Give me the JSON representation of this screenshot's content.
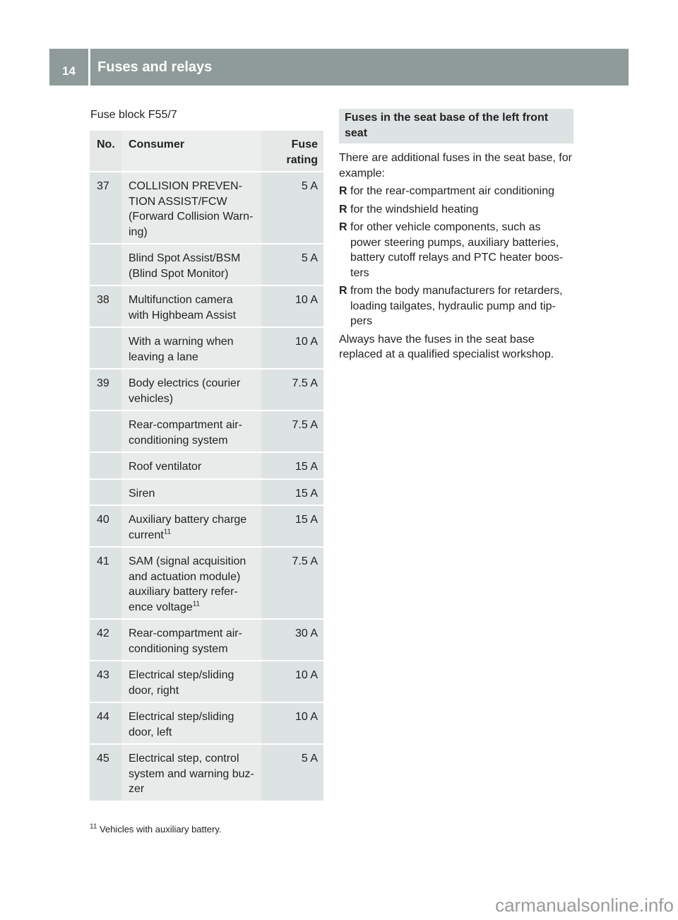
{
  "header": {
    "page_number": "14",
    "title": "Fuses and relays"
  },
  "caption": "Fuse block F55/7",
  "table": {
    "headers": [
      "No.",
      "Consumer",
      "Fuse rating"
    ],
    "rows": [
      {
        "no": "37",
        "consumer": "COLLISION PREVEN-\nTION ASSIST/FCW\n(Forward Collision Warn-\ning)",
        "rating": "5 A"
      },
      {
        "no": "",
        "consumer": "Blind Spot Assist/BSM\n(Blind Spot Monitor)",
        "rating": "5 A"
      },
      {
        "no": "38",
        "consumer": "Multifunction camera\nwith Highbeam Assist",
        "rating": "10 A"
      },
      {
        "no": "",
        "consumer": "With a warning when\nleaving a lane",
        "rating": "10 A"
      },
      {
        "no": "39",
        "consumer": "Body electrics (courier\nvehicles)",
        "rating": "7.5 A"
      },
      {
        "no": "",
        "consumer": "Rear-compartment air-\nconditioning system",
        "rating": "7.5 A"
      },
      {
        "no": "",
        "consumer": "Roof ventilator",
        "rating": "15 A"
      },
      {
        "no": "",
        "consumer": "Siren",
        "rating": "15 A"
      },
      {
        "no": "40",
        "consumer": "Auxiliary battery charge\ncurrent",
        "sup": "11",
        "rating": "15 A"
      },
      {
        "no": "41",
        "consumer": "SAM (signal acquisition\nand actuation module)\nauxiliary battery refer-\nence voltage",
        "sup": "11",
        "rating": "7.5 A"
      },
      {
        "no": "42",
        "consumer": "Rear-compartment air-\nconditioning system",
        "rating": "30 A"
      },
      {
        "no": "43",
        "consumer": "Electrical step/sliding\ndoor, right",
        "rating": "10 A"
      },
      {
        "no": "44",
        "consumer": "Electrical step/sliding\ndoor, left",
        "rating": "10 A"
      },
      {
        "no": "45",
        "consumer": "Electrical step, control\nsystem and warning buz-\nzer",
        "rating": "5 A"
      }
    ]
  },
  "section": {
    "heading": "Fuses in the seat base of the left front seat",
    "intro": "There are additional fuses in the seat base, for example:",
    "bullet_glyph": "R",
    "bullets": [
      "for the rear-compartment air conditioning",
      "for the windshield heating",
      "for other vehicle components, such as power steering pumps, auxiliary batteries, battery cutoff relays and PTC heater boos-ters",
      "from the body manufacturers for retarders, loading tailgates, hydraulic pump and tip-pers"
    ],
    "closing": "Always have the fuses in the seat base replaced at a qualified specialist workshop."
  },
  "footnote": {
    "mark": "11",
    "text": "Vehicles with auxiliary battery."
  },
  "watermark": "carmanualsonline.info"
}
